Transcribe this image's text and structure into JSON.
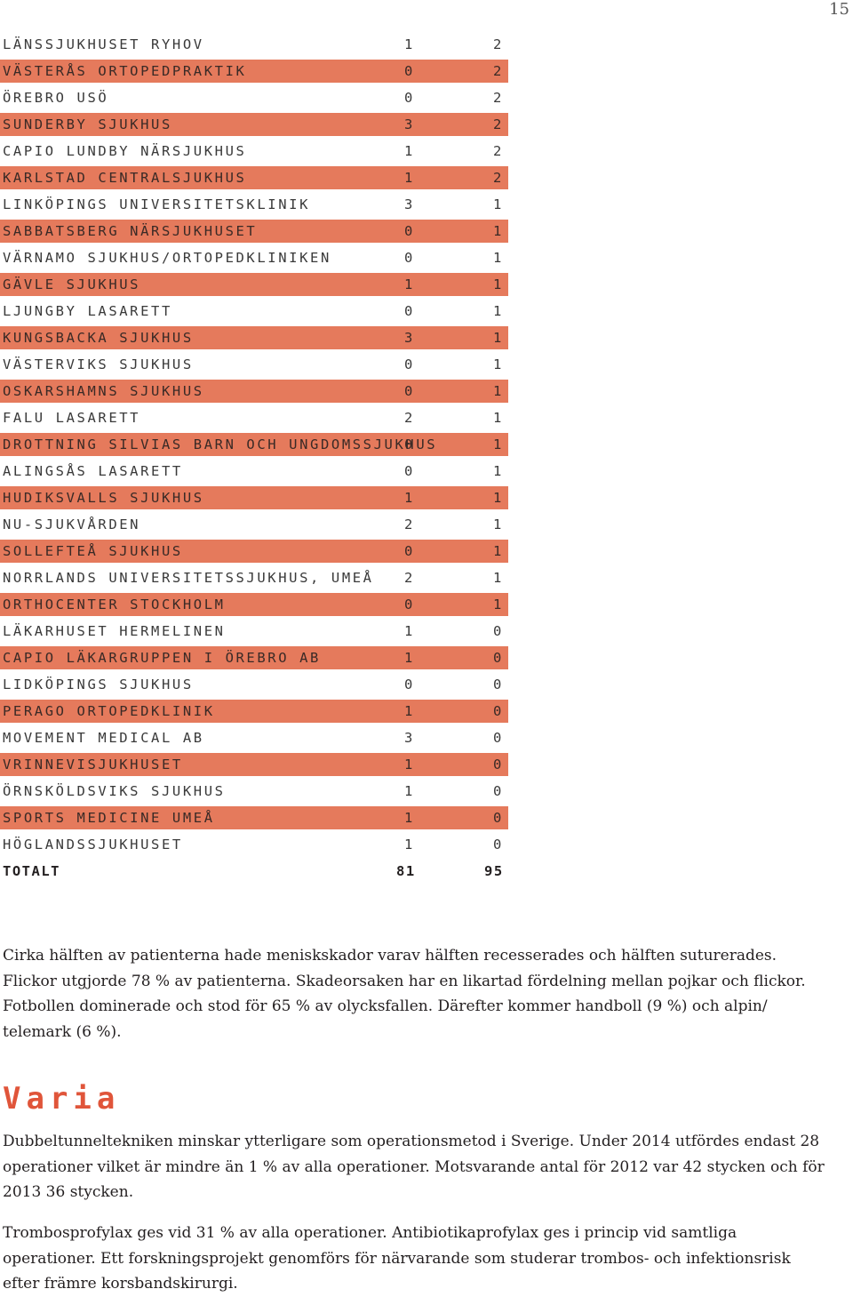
{
  "page_number": "15",
  "table": {
    "rows": [
      {
        "name": "LÄNSSJUKHUSET RYHOV",
        "v1": "1",
        "v2": "2",
        "shaded": false
      },
      {
        "name": "VÄSTERÅS ORTOPEDPRAKTIK",
        "v1": "0",
        "v2": "2",
        "shaded": true
      },
      {
        "name": "ÖREBRO USÖ",
        "v1": "0",
        "v2": "2",
        "shaded": false
      },
      {
        "name": "SUNDERBY SJUKHUS",
        "v1": "3",
        "v2": "2",
        "shaded": true
      },
      {
        "name": "CAPIO LUNDBY NÄRSJUKHUS",
        "v1": "1",
        "v2": "2",
        "shaded": false
      },
      {
        "name": "KARLSTAD CENTRALSJUKHUS",
        "v1": "1",
        "v2": "2",
        "shaded": true
      },
      {
        "name": "LINKÖPINGS UNIVERSITETSKLINIK",
        "v1": "3",
        "v2": "1",
        "shaded": false
      },
      {
        "name": "SABBATSBERG NÄRSJUKHUSET",
        "v1": "0",
        "v2": "1",
        "shaded": true
      },
      {
        "name": "VÄRNAMO SJUKHUS/ORTOPEDKLINIKEN",
        "v1": "0",
        "v2": "1",
        "shaded": false
      },
      {
        "name": "GÄVLE SJUKHUS",
        "v1": "1",
        "v2": "1",
        "shaded": true
      },
      {
        "name": "LJUNGBY LASARETT",
        "v1": "0",
        "v2": "1",
        "shaded": false
      },
      {
        "name": "KUNGSBACKA SJUKHUS",
        "v1": "3",
        "v2": "1",
        "shaded": true
      },
      {
        "name": "VÄSTERVIKS SJUKHUS",
        "v1": "0",
        "v2": "1",
        "shaded": false
      },
      {
        "name": "OSKARSHAMNS SJUKHUS",
        "v1": "0",
        "v2": "1",
        "shaded": true
      },
      {
        "name": "FALU LASARETT",
        "v1": "2",
        "v2": "1",
        "shaded": false
      },
      {
        "name": "DROTTNING SILVIAS BARN OCH UNGDOMSSJUKHUS",
        "v1": "0",
        "v2": "1",
        "shaded": true
      },
      {
        "name": "ALINGSÅS LASARETT",
        "v1": "0",
        "v2": "1",
        "shaded": false
      },
      {
        "name": "HUDIKSVALLS SJUKHUS",
        "v1": "1",
        "v2": "1",
        "shaded": true
      },
      {
        "name": "NU-SJUKVÅRDEN",
        "v1": "2",
        "v2": "1",
        "shaded": false
      },
      {
        "name": "SOLLEFTEÅ SJUKHUS",
        "v1": "0",
        "v2": "1",
        "shaded": true
      },
      {
        "name": "NORRLANDS UNIVERSITETSSJUKHUS, UMEÅ",
        "v1": "2",
        "v2": "1",
        "shaded": false
      },
      {
        "name": "ORTHOCENTER STOCKHOLM",
        "v1": "0",
        "v2": "1",
        "shaded": true
      },
      {
        "name": "LÄKARHUSET HERMELINEN",
        "v1": "1",
        "v2": "0",
        "shaded": false
      },
      {
        "name": "CAPIO LÄKARGRUPPEN I ÖREBRO AB",
        "v1": "1",
        "v2": "0",
        "shaded": true
      },
      {
        "name": "LIDKÖPINGS SJUKHUS",
        "v1": "0",
        "v2": "0",
        "shaded": false
      },
      {
        "name": "PERAGO ORTOPEDKLINIK",
        "v1": "1",
        "v2": "0",
        "shaded": true
      },
      {
        "name": "MOVEMENT MEDICAL AB",
        "v1": "3",
        "v2": "0",
        "shaded": false
      },
      {
        "name": "VRINNEVISJUKHUSET",
        "v1": "1",
        "v2": "0",
        "shaded": true
      },
      {
        "name": "ÖRNSKÖLDSVIKS SJUKHUS",
        "v1": "1",
        "v2": "0",
        "shaded": false
      },
      {
        "name": "SPORTS MEDICINE UMEÅ",
        "v1": "1",
        "v2": "0",
        "shaded": true
      },
      {
        "name": "HÖGLANDSSJUKHUSET",
        "v1": "1",
        "v2": "0",
        "shaded": false
      }
    ],
    "total": {
      "name": "TOTALT",
      "v1": "81",
      "v2": "95"
    }
  },
  "paragraph1": "Cirka hälften av patienterna hade meniskskador varav hälften recesserades och hälften suturerades. Flickor utgjorde 78 % av patienterna. Skadeorsaken har en likartad fördelning mellan pojkar och flickor. Fotbollen dominerade och stod för 65 % av olycksfallen. Därefter kommer handboll (9 %) och alpin/ telemark (6 %).",
  "heading": "Varia",
  "paragraph2": "Dubbeltunneltekniken minskar ytterligare som operationsmetod i Sverige. Under 2014 utfördes endast 28 operationer vilket är mindre än 1 % av alla operationer. Motsvarande antal för 2012 var 42 stycken och för 2013 36 stycken.",
  "paragraph3": "Trombosprofylax ges vid 31 % av alla operationer. Antibiotikaprofylax ges i princip vid samtliga operationer. Ett forskningsprojekt genomförs för närvarande som studerar trombos- och infektionsrisk efter främre korsbandskirurgi.",
  "colors": {
    "row_shade": "#e57a5c",
    "heading": "#e0553a"
  }
}
